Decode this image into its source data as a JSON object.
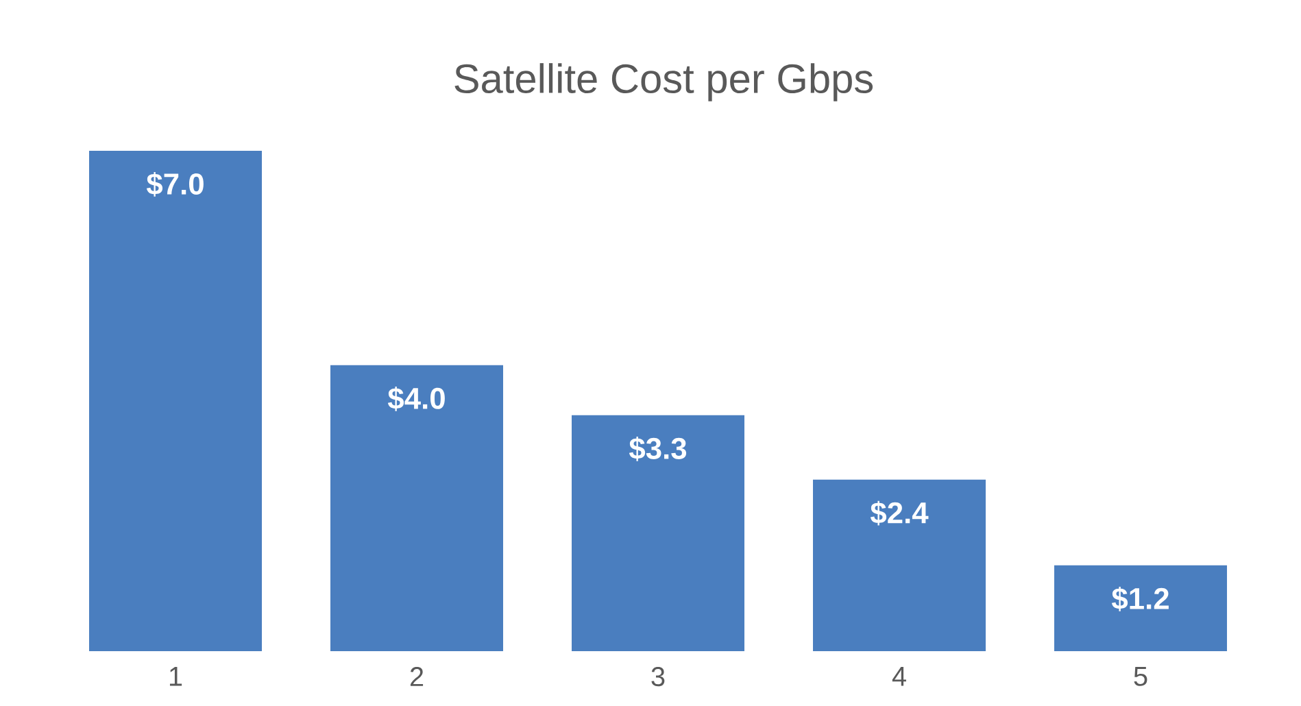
{
  "chart_data": {
    "type": "bar",
    "title": "Satellite Cost per Gbps",
    "categories": [
      "1",
      "2",
      "3",
      "4",
      "5"
    ],
    "values": [
      7.0,
      4.0,
      3.3,
      2.4,
      1.2
    ],
    "value_labels": [
      "$7.0",
      "$4.0",
      "$3.3",
      "$2.4",
      "$1.2"
    ],
    "color": "#4a7ebf"
  }
}
